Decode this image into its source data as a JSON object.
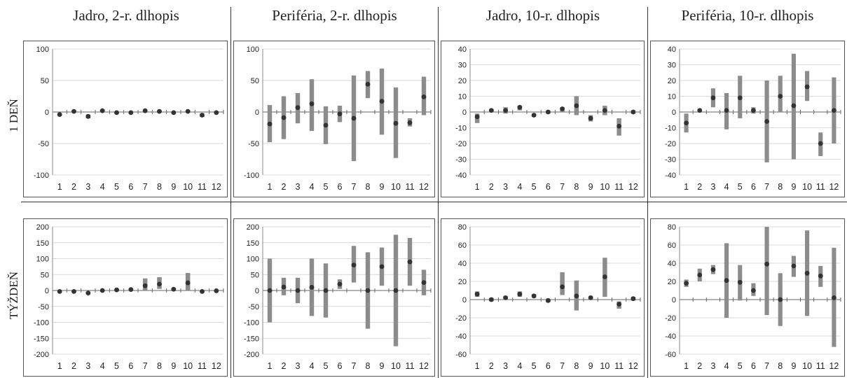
{
  "columns": [
    "Jadro, 2-r. dlhopis",
    "Periféria, 2-r. dlhopis",
    "Jadro, 10-r. dlhopis",
    "Periféria, 10-r. dlhopis"
  ],
  "rows": [
    "1 DEŇ",
    "TÝŽDEŇ"
  ],
  "colors": {
    "bar": "#8c8c8c",
    "dot": "#333333",
    "grid": "#d9d9d9",
    "frame": "#555555"
  },
  "chart_data": [
    {
      "type": "range-bar-with-point",
      "column": "Jadro, 2-r. dlhopis",
      "row": "1 DEŇ",
      "ylim": [
        -100,
        100
      ],
      "yticks": [
        -100,
        -50,
        0,
        50,
        100
      ],
      "x": [
        "1",
        "2",
        "3",
        "4",
        "5",
        "6",
        "7",
        "8",
        "9",
        "10",
        "11",
        "12"
      ],
      "points": [
        -4,
        1,
        -7,
        2,
        -1,
        -1,
        2,
        1,
        -1,
        1,
        -5,
        -1
      ],
      "low": [
        -6,
        -1,
        -10,
        0,
        -3,
        -3,
        0,
        -1,
        -3,
        -1,
        -8,
        -3
      ],
      "high": [
        -2,
        3,
        -4,
        4,
        1,
        1,
        4,
        3,
        1,
        3,
        -2,
        1
      ]
    },
    {
      "type": "range-bar-with-point",
      "column": "Periféria, 2-r. dlhopis",
      "row": "1 DEŇ",
      "ylim": [
        -100,
        100
      ],
      "yticks": [
        -100,
        -50,
        0,
        50,
        100
      ],
      "x": [
        "1",
        "2",
        "3",
        "4",
        "5",
        "6",
        "7",
        "8",
        "9",
        "10",
        "11",
        "12"
      ],
      "points": [
        -19,
        -9,
        7,
        13,
        -21,
        -3,
        -10,
        44,
        17,
        -18,
        -17,
        24
      ],
      "low": [
        -48,
        -43,
        -18,
        -30,
        -51,
        -16,
        -78,
        22,
        -36,
        -73,
        -23,
        -5
      ],
      "high": [
        11,
        25,
        30,
        52,
        9,
        10,
        58,
        65,
        69,
        39,
        -10,
        56
      ]
    },
    {
      "type": "range-bar-with-point",
      "column": "Jadro, 10-r. dlhopis",
      "row": "1 DEŇ",
      "ylim": [
        -40,
        40
      ],
      "yticks": [
        -40,
        -30,
        -20,
        -10,
        0,
        10,
        20,
        30,
        40
      ],
      "x": [
        "1",
        "2",
        "3",
        "4",
        "5",
        "6",
        "7",
        "8",
        "9",
        "10",
        "11",
        "12"
      ],
      "points": [
        -3,
        1,
        1,
        3,
        -2,
        0,
        2,
        4,
        -4,
        1,
        -9,
        0
      ],
      "low": [
        -7,
        0,
        -1,
        1,
        -3,
        -1,
        0,
        -2,
        -6,
        -2,
        -15,
        -1
      ],
      "high": [
        -1,
        2,
        3,
        4,
        -1,
        1,
        3,
        10,
        -2,
        4,
        -4,
        1
      ]
    },
    {
      "type": "range-bar-with-point",
      "column": "Periféria, 10-r. dlhopis",
      "row": "1 DEŇ",
      "ylim": [
        -40,
        40
      ],
      "yticks": [
        -40,
        -30,
        -20,
        -10,
        0,
        10,
        20,
        30,
        40
      ],
      "x": [
        "1",
        "2",
        "3",
        "4",
        "5",
        "6",
        "7",
        "8",
        "9",
        "10",
        "11",
        "12"
      ],
      "points": [
        -7,
        1,
        9,
        1,
        9,
        1,
        -6,
        10,
        4,
        16,
        -20,
        1
      ],
      "low": [
        -13,
        0,
        3,
        -11,
        -4,
        -1,
        -32,
        0,
        -30,
        7,
        -28,
        -20
      ],
      "high": [
        -1,
        2,
        15,
        12,
        23,
        3,
        20,
        23,
        37,
        26,
        -13,
        22
      ]
    },
    {
      "type": "range-bar-with-point",
      "column": "Jadro, 2-r. dlhopis",
      "row": "TÝŽDEŇ",
      "ylim": [
        -200,
        200
      ],
      "yticks": [
        -200,
        -150,
        -100,
        -50,
        0,
        50,
        100,
        150,
        200
      ],
      "x": [
        "1",
        "2",
        "3",
        "4",
        "5",
        "6",
        "7",
        "8",
        "9",
        "10",
        "11",
        "12"
      ],
      "points": [
        -3,
        -3,
        -8,
        0,
        2,
        3,
        15,
        20,
        4,
        24,
        -3,
        -1
      ],
      "low": [
        -6,
        -6,
        -12,
        -3,
        -1,
        0,
        0,
        5,
        1,
        0,
        -6,
        -4
      ],
      "high": [
        0,
        0,
        -4,
        3,
        5,
        6,
        38,
        42,
        7,
        55,
        0,
        2
      ]
    },
    {
      "type": "range-bar-with-point",
      "column": "Periféria, 2-r. dlhopis",
      "row": "TÝŽDEŇ",
      "ylim": [
        -200,
        200
      ],
      "yticks": [
        -200,
        -150,
        -100,
        -50,
        0,
        50,
        100,
        150,
        200
      ],
      "x": [
        "1",
        "2",
        "3",
        "4",
        "5",
        "6",
        "7",
        "8",
        "9",
        "10",
        "11",
        "12"
      ],
      "points": [
        0,
        11,
        0,
        10,
        0,
        20,
        80,
        0,
        75,
        0,
        90,
        25
      ],
      "low": [
        -100,
        -15,
        -40,
        -80,
        -85,
        5,
        25,
        -120,
        15,
        -175,
        15,
        -15
      ],
      "high": [
        100,
        40,
        40,
        100,
        85,
        35,
        140,
        120,
        135,
        175,
        165,
        65
      ]
    },
    {
      "type": "range-bar-with-point",
      "column": "Jadro, 10-r. dlhopis",
      "row": "TÝŽDEŇ",
      "ylim": [
        -60,
        80
      ],
      "yticks": [
        -60,
        -40,
        -20,
        0,
        20,
        40,
        60,
        80
      ],
      "x": [
        "1",
        "2",
        "3",
        "4",
        "5",
        "6",
        "7",
        "8",
        "9",
        "10",
        "11",
        "12"
      ],
      "points": [
        6,
        0,
        2,
        6,
        4,
        -1,
        14,
        4,
        2,
        25,
        -5,
        1
      ],
      "low": [
        3,
        -2,
        0,
        3,
        2,
        -3,
        5,
        -12,
        0,
        3,
        -10,
        -1
      ],
      "high": [
        9,
        2,
        4,
        9,
        6,
        1,
        30,
        21,
        4,
        46,
        -2,
        3
      ]
    },
    {
      "type": "range-bar-with-point",
      "column": "Periféria, 10-r. dlhopis",
      "row": "TÝŽDEŇ",
      "ylim": [
        -60,
        80
      ],
      "yticks": [
        -60,
        -40,
        -20,
        0,
        20,
        40,
        60,
        80
      ],
      "x": [
        "1",
        "2",
        "3",
        "4",
        "5",
        "6",
        "7",
        "8",
        "9",
        "10",
        "11",
        "12"
      ],
      "points": [
        18,
        27,
        33,
        21,
        19,
        10,
        39,
        0,
        37,
        29,
        26,
        2
      ],
      "low": [
        14,
        20,
        28,
        -20,
        -1,
        4,
        -17,
        -29,
        25,
        -18,
        14,
        -52
      ],
      "high": [
        22,
        34,
        38,
        62,
        38,
        18,
        80,
        29,
        48,
        76,
        37,
        57
      ]
    }
  ]
}
